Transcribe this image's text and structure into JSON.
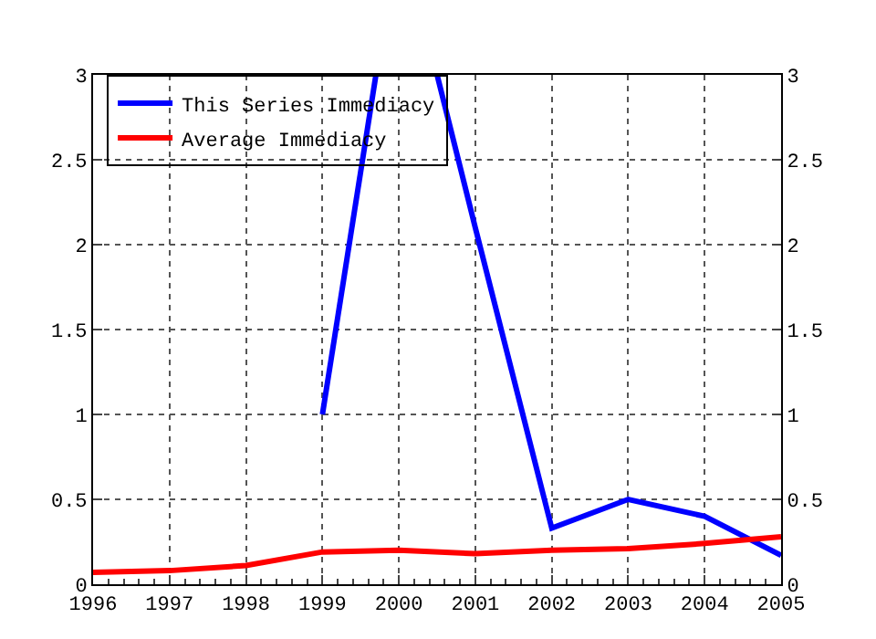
{
  "chart_data": {
    "type": "line",
    "x": [
      1996,
      1997,
      1998,
      1999,
      2000,
      2001,
      2002,
      2003,
      2004,
      2005
    ],
    "series": [
      {
        "name": "This Series Immediacy",
        "color": "#0000ff",
        "x": [
          1999,
          1999.7,
          2000,
          2000.5,
          2001,
          2002,
          2003,
          2004,
          2005
        ],
        "values": [
          1,
          3,
          null,
          3,
          2.1,
          0.33,
          0.5,
          0.4,
          0.17
        ]
      },
      {
        "name": "Average Immediacy",
        "color": "#ff0000",
        "values": [
          0.07,
          0.08,
          0.11,
          0.19,
          0.2,
          0.18,
          0.2,
          0.21,
          0.24,
          0.28
        ]
      }
    ],
    "xlim": [
      1996,
      2005
    ],
    "xticks": [
      1996,
      1997,
      1998,
      1999,
      2000,
      2001,
      2002,
      2003,
      2004,
      2005
    ],
    "ylim": [
      0,
      3
    ],
    "yticks": [
      0,
      0.5,
      1,
      1.5,
      2,
      2.5,
      3
    ],
    "y2lim": [
      0,
      3
    ],
    "y2ticks": [
      0,
      0.5,
      1,
      1.5,
      2,
      2.5,
      3
    ],
    "grid": true,
    "legend": "top left",
    "marker": "none",
    "line_style": "solid"
  }
}
